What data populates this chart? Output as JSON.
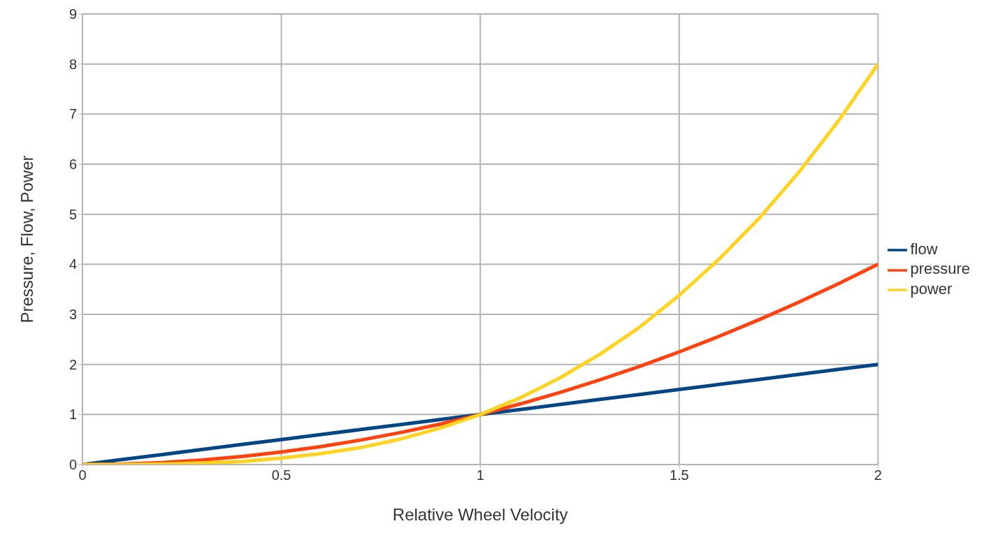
{
  "chart_data": {
    "type": "line",
    "xlabel": "Relative Wheel Velocity",
    "ylabel": "Pressure, Flow, Power",
    "x": [
      0,
      0.1,
      0.2,
      0.3,
      0.4,
      0.5,
      0.6,
      0.7,
      0.8,
      0.9,
      1,
      1.1,
      1.2,
      1.3,
      1.4,
      1.5,
      1.6,
      1.7,
      1.8,
      1.9,
      2
    ],
    "series": [
      {
        "name": "flow",
        "color": "#004586",
        "values": [
          0,
          0.1,
          0.2,
          0.3,
          0.4,
          0.5,
          0.6,
          0.7,
          0.8,
          0.9,
          1,
          1.1,
          1.2,
          1.3,
          1.4,
          1.5,
          1.6,
          1.7,
          1.8,
          1.9,
          2
        ]
      },
      {
        "name": "pressure",
        "color": "#ff420e",
        "values": [
          0,
          0.01,
          0.04,
          0.09,
          0.16,
          0.25,
          0.36,
          0.49,
          0.64,
          0.81,
          1,
          1.21,
          1.44,
          1.69,
          1.96,
          2.25,
          2.56,
          2.89,
          3.24,
          3.61,
          4
        ]
      },
      {
        "name": "power",
        "color": "#ffd320",
        "values": [
          0,
          0,
          0.01,
          0.03,
          0.06,
          0.13,
          0.22,
          0.34,
          0.51,
          0.73,
          1,
          1.33,
          1.73,
          2.2,
          2.74,
          3.38,
          4.1,
          4.91,
          5.83,
          6.86,
          8
        ]
      }
    ],
    "xlim": [
      0,
      2
    ],
    "xticks": [
      0,
      {
        "value": 0.5,
        "label": "0.5"
      },
      1,
      {
        "value": 1.5,
        "label": "1.5"
      },
      2
    ],
    "ylim": [
      0,
      9
    ],
    "yticks": [
      0,
      1,
      2,
      3,
      4,
      5,
      6,
      7,
      8,
      9
    ],
    "grid": true,
    "legend": "right",
    "marker": "none",
    "line_style": "solid"
  }
}
